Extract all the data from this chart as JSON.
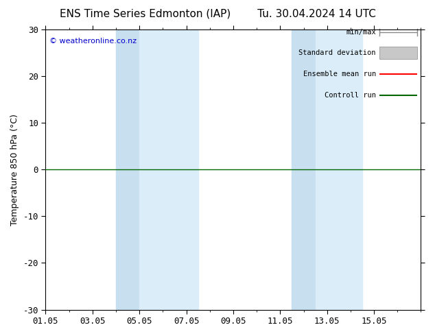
{
  "title_left": "ENS Time Series Edmonton (IAP)",
  "title_right": "Tu. 30.04.2024 14 UTC",
  "ylabel": "Temperature 850 hPa (°C)",
  "ylim": [
    -30,
    30
  ],
  "yticks": [
    -30,
    -20,
    -10,
    0,
    10,
    20,
    30
  ],
  "xlim_start": 0,
  "xlim_end": 16,
  "xtick_labels": [
    "01.05",
    "03.05",
    "05.05",
    "07.05",
    "09.05",
    "11.05",
    "13.05",
    "15.05"
  ],
  "xtick_positions": [
    0,
    2,
    4,
    6,
    8,
    10,
    12,
    14
  ],
  "shaded_bands": [
    [
      3.0,
      4.0
    ],
    [
      4.0,
      6.5
    ],
    [
      10.5,
      11.5
    ],
    [
      11.5,
      13.5
    ]
  ],
  "shade_color_dark": "#c8dff0",
  "shade_color_light": "#daedf8",
  "control_run_y": 0,
  "control_run_color": "#006600",
  "ensemble_mean_color": "#ff0000",
  "minmax_color": "#888888",
  "std_dev_color": "#c8c8c8",
  "watermark_text": "© weatheronline.co.nz",
  "watermark_color": "#0000cc",
  "bg_color": "#ffffff",
  "legend_labels": [
    "min/max",
    "Standard deviation",
    "Ensemble mean run",
    "Controll run"
  ],
  "legend_colors": [
    "#888888",
    "#c8c8c8",
    "#ff0000",
    "#006600"
  ],
  "title_fontsize": 11,
  "axis_fontsize": 9,
  "tick_fontsize": 9
}
